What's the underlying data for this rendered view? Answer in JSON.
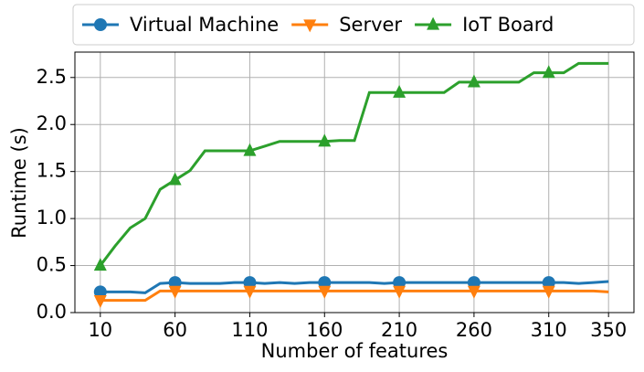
{
  "chart_data": {
    "type": "line",
    "x_label": "Number of features",
    "y_label": "Runtime (s)",
    "x": [
      10,
      20,
      30,
      40,
      50,
      60,
      70,
      80,
      90,
      100,
      110,
      120,
      130,
      140,
      150,
      160,
      170,
      180,
      190,
      200,
      210,
      220,
      230,
      240,
      250,
      260,
      270,
      280,
      290,
      300,
      310,
      320,
      330,
      340,
      350
    ],
    "series": [
      {
        "name": "Virtual Machine",
        "color": "#1f77b4",
        "marker": "circle",
        "values": [
          0.22,
          0.22,
          0.22,
          0.21,
          0.31,
          0.32,
          0.31,
          0.31,
          0.31,
          0.32,
          0.32,
          0.31,
          0.32,
          0.31,
          0.32,
          0.32,
          0.32,
          0.32,
          0.32,
          0.31,
          0.32,
          0.32,
          0.32,
          0.32,
          0.32,
          0.32,
          0.32,
          0.32,
          0.32,
          0.32,
          0.32,
          0.32,
          0.31,
          0.32,
          0.33
        ]
      },
      {
        "name": "Server",
        "color": "#ff7f0e",
        "marker": "triangle-down",
        "values": [
          0.13,
          0.13,
          0.13,
          0.13,
          0.23,
          0.23,
          0.23,
          0.23,
          0.23,
          0.23,
          0.23,
          0.23,
          0.23,
          0.23,
          0.23,
          0.23,
          0.23,
          0.23,
          0.23,
          0.23,
          0.23,
          0.23,
          0.23,
          0.23,
          0.23,
          0.23,
          0.23,
          0.23,
          0.23,
          0.23,
          0.23,
          0.23,
          0.23,
          0.23,
          0.22
        ]
      },
      {
        "name": "IoT Board",
        "color": "#2ca02c",
        "marker": "triangle-up",
        "values": [
          0.5,
          0.71,
          0.9,
          1.0,
          1.31,
          1.41,
          1.51,
          1.72,
          1.72,
          1.72,
          1.72,
          1.77,
          1.82,
          1.82,
          1.82,
          1.82,
          1.83,
          1.83,
          2.34,
          2.34,
          2.34,
          2.34,
          2.34,
          2.34,
          2.45,
          2.45,
          2.45,
          2.45,
          2.45,
          2.55,
          2.55,
          2.55,
          2.65,
          2.65,
          2.65
        ]
      }
    ],
    "marker_every": 5,
    "xlim": [
      -7,
      367
    ],
    "ylim": [
      0,
      2.77
    ],
    "xticks": [
      10,
      60,
      110,
      160,
      210,
      260,
      310,
      350
    ],
    "yticks": [
      {
        "value": 0,
        "label": "0.0"
      },
      {
        "value": 0.5,
        "label": "0.5"
      },
      {
        "value": 1,
        "label": "1.0"
      },
      {
        "value": 1.5,
        "label": "1.5"
      },
      {
        "value": 2,
        "label": "2.0"
      },
      {
        "value": 2.5,
        "label": "2.5"
      }
    ],
    "grid": true,
    "legend": "top"
  }
}
